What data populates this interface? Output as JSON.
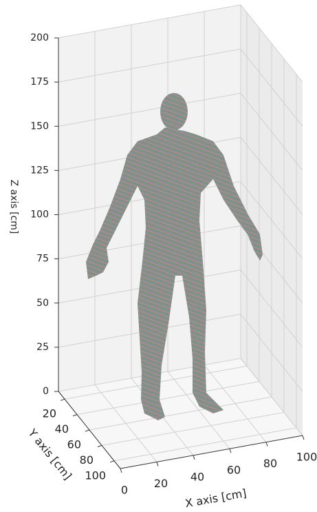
{
  "chart_data": {
    "type": "scatter3d",
    "xlabel": "X axis [cm]",
    "ylabel": "Y axis [cm]",
    "zlabel": "Z axis [cm]",
    "xlim": [
      0,
      100
    ],
    "ylim": [
      10,
      110
    ],
    "zlim": [
      0,
      200
    ],
    "xticks": [
      0,
      20,
      40,
      60,
      80,
      100
    ],
    "yticks": [
      20,
      40,
      60,
      80,
      100
    ],
    "zticks": [
      0,
      25,
      50,
      75,
      100,
      125,
      150,
      175,
      200
    ],
    "grid": true
  }
}
